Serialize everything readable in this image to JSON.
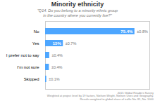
{
  "chart_data": {
    "type": "bar",
    "orientation": "horizontal",
    "title": "Minority ethnicity",
    "subtitle": "\"Q14. Do you belong to a minority ethnic group\nin the country where you currently live?\"",
    "categories": [
      "No",
      "Yes",
      "I prefer not to say",
      "I’m not sure",
      "Skipped"
    ],
    "values": [
      75.4,
      15.0,
      3.5,
      3.2,
      1.0
    ],
    "value_labels": [
      "75.4%",
      "15%",
      null,
      null,
      null
    ],
    "data_labels": true,
    "error_labels": [
      "±0.8%",
      "±0.7%",
      "±0.4%",
      "±0.4%",
      "±0.1%"
    ],
    "footnote": [
      "2015 Global Readers Survey",
      "Weighted at project level by 19 factors, Nielsen Wright, Nielsen Uses and Geography.",
      "Results weighted to global share of traffic No. 81, No. 1000"
    ],
    "color": "#4da6ff",
    "xlim": [
      0,
      88
    ],
    "tick_labels": "y"
  }
}
